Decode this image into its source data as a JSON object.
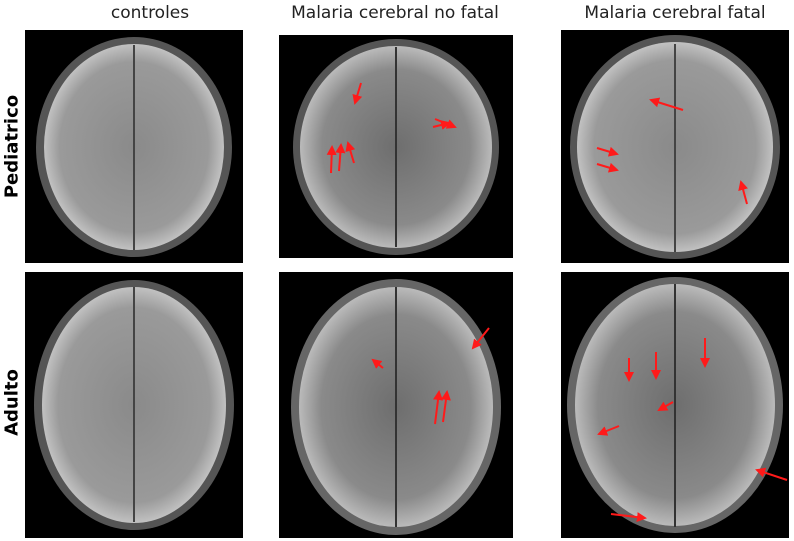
{
  "columns": [
    "controles",
    "Malaria cerebral no fatal",
    "Malaria cerebral fatal"
  ],
  "rows": [
    "Pediatrico",
    "Adulto"
  ],
  "colors": {
    "arrow": "#ff1a1a",
    "background": "#000000"
  }
}
